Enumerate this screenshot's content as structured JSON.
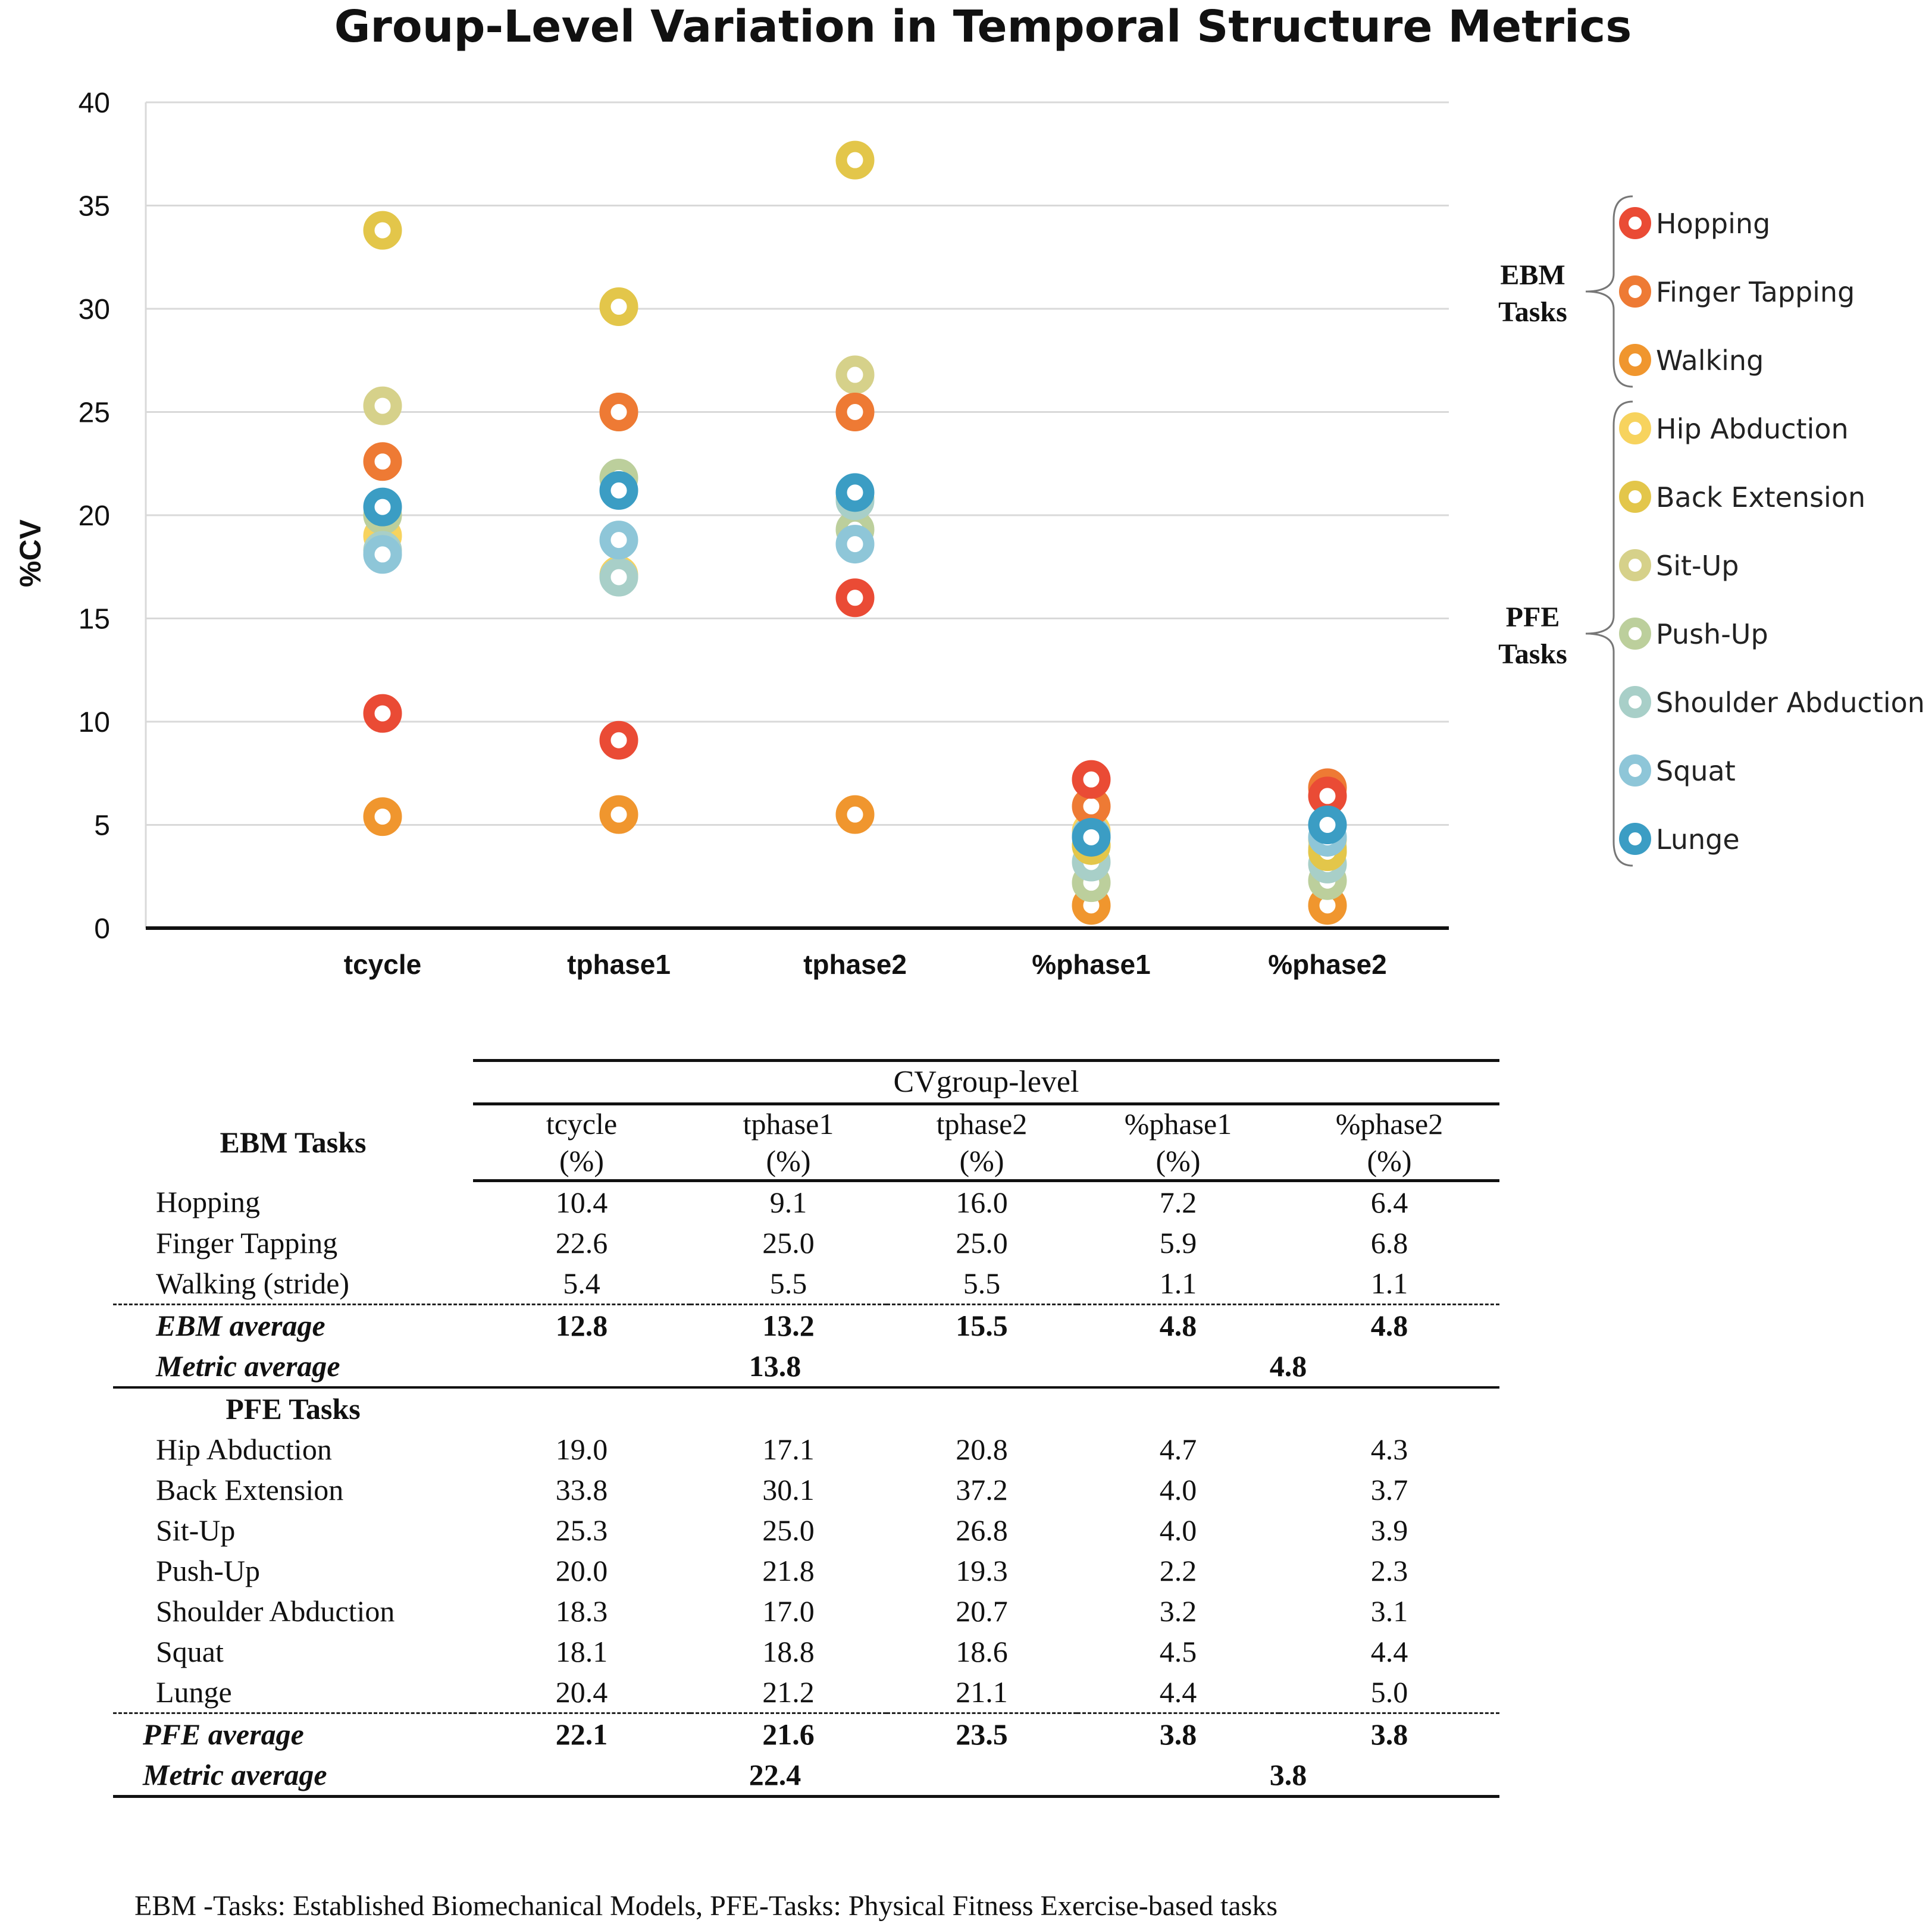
{
  "chart_data": {
    "type": "scatter",
    "title": "Group-Level Variation in Temporal Structure Metrics",
    "ylabel": "%CV",
    "xlabel": "",
    "ylim": [
      0,
      40
    ],
    "yticks": [
      0,
      5,
      10,
      15,
      20,
      25,
      30,
      35,
      40
    ],
    "categories": [
      "tcycle",
      "tphase1",
      "tphase2",
      "%phase1",
      "%phase2"
    ],
    "grid": true,
    "legend_position": "right",
    "legend_groups": [
      {
        "label_line1": "EBM",
        "label_line2": "Tasks",
        "series": [
          "Hopping",
          "Finger Tapping",
          "Walking"
        ]
      },
      {
        "label_line1": "PFE",
        "label_line2": "Tasks",
        "series": [
          "Hip Abduction",
          "Back Extension",
          "Sit-Up",
          "Push-Up",
          "Shoulder Abduction",
          "Squat",
          "Lunge"
        ]
      }
    ],
    "series": [
      {
        "name": "Hip Abduction",
        "color": "#f7d35e",
        "values": [
          19.0,
          17.1,
          20.8,
          4.7,
          4.3
        ]
      },
      {
        "name": "Walking",
        "color": "#f0962e",
        "values": [
          5.4,
          5.5,
          5.5,
          1.1,
          1.1
        ]
      },
      {
        "name": "Push-Up",
        "color": "#bccf9c",
        "values": [
          20.0,
          21.8,
          19.3,
          2.2,
          2.3
        ]
      },
      {
        "name": "Shoulder Abduction",
        "color": "#a8cfc8",
        "values": [
          18.3,
          17.0,
          20.7,
          3.2,
          3.1
        ]
      },
      {
        "name": "Sit-Up",
        "color": "#d6d18a",
        "values": [
          25.3,
          25.0,
          26.8,
          4.0,
          3.9
        ]
      },
      {
        "name": "Back Extension",
        "color": "#e3c64a",
        "values": [
          33.8,
          30.1,
          37.2,
          4.0,
          3.7
        ]
      },
      {
        "name": "Squat",
        "color": "#8ec6d8",
        "values": [
          18.1,
          18.8,
          18.6,
          4.5,
          4.4
        ]
      },
      {
        "name": "Finger Tapping",
        "color": "#ee7a34",
        "values": [
          22.6,
          25.0,
          25.0,
          5.9,
          6.8
        ]
      },
      {
        "name": "Hopping",
        "color": "#ea4b35",
        "values": [
          10.4,
          9.1,
          16.0,
          7.2,
          6.4
        ]
      },
      {
        "name": "Lunge",
        "color": "#3b9dc4",
        "values": [
          20.4,
          21.2,
          21.1,
          4.4,
          5.0
        ]
      }
    ],
    "legend_order": [
      "Hopping",
      "Finger Tapping",
      "Walking",
      "Hip Abduction",
      "Back Extension",
      "Sit-Up",
      "Push-Up",
      "Shoulder Abduction",
      "Squat",
      "Lunge"
    ]
  },
  "table": {
    "group_header": "CVgroup-level",
    "columns": [
      {
        "line1": "tcycle",
        "line2": "(%)"
      },
      {
        "line1": "tphase1",
        "line2": "(%)"
      },
      {
        "line1": "tphase2",
        "line2": "(%)"
      },
      {
        "line1": "%phase1",
        "line2": "(%)"
      },
      {
        "line1": "%phase2",
        "line2": "(%)"
      }
    ],
    "ebm_heading": "EBM  Tasks",
    "ebm_rows": [
      {
        "label": "Hopping",
        "values": [
          "10.4",
          "9.1",
          "16.0",
          "7.2",
          "6.4"
        ]
      },
      {
        "label": "Finger Tapping",
        "values": [
          "22.6",
          "25.0",
          "25.0",
          "5.9",
          "6.8"
        ]
      },
      {
        "label": "Walking (stride)",
        "values": [
          "5.4",
          "5.5",
          "5.5",
          "1.1",
          "1.1"
        ]
      }
    ],
    "ebm_average": {
      "label": "EBM average",
      "values": [
        "12.8",
        "13.2",
        "15.5",
        "4.8",
        "4.8"
      ]
    },
    "ebm_metric_average": {
      "label": "Metric average",
      "time": "13.8",
      "percent": "4.8"
    },
    "pfe_heading": "PFE Tasks",
    "pfe_rows": [
      {
        "label": "Hip Abduction",
        "values": [
          "19.0",
          "17.1",
          "20.8",
          "4.7",
          "4.3"
        ]
      },
      {
        "label": "Back Extension",
        "values": [
          "33.8",
          "30.1",
          "37.2",
          "4.0",
          "3.7"
        ]
      },
      {
        "label": "Sit-Up",
        "values": [
          "25.3",
          "25.0",
          "26.8",
          "4.0",
          "3.9"
        ]
      },
      {
        "label": "Push-Up",
        "values": [
          "20.0",
          "21.8",
          "19.3",
          "2.2",
          "2.3"
        ]
      },
      {
        "label": "Shoulder Abduction",
        "values": [
          "18.3",
          "17.0",
          "20.7",
          "3.2",
          "3.1"
        ]
      },
      {
        "label": "Squat",
        "values": [
          "18.1",
          "18.8",
          "18.6",
          "4.5",
          "4.4"
        ]
      },
      {
        "label": "Lunge",
        "values": [
          "20.4",
          "21.2",
          "21.1",
          "4.4",
          "5.0"
        ]
      }
    ],
    "pfe_average": {
      "label": "PFE average",
      "values": [
        "22.1",
        "21.6",
        "23.5",
        "3.8",
        "3.8"
      ]
    },
    "pfe_metric_average": {
      "label": "Metric average",
      "time": "22.4",
      "percent": "3.8"
    }
  },
  "footnote": "EBM -Tasks: Established Biomechanical Models, PFE-Tasks: Physical Fitness Exercise-based tasks"
}
